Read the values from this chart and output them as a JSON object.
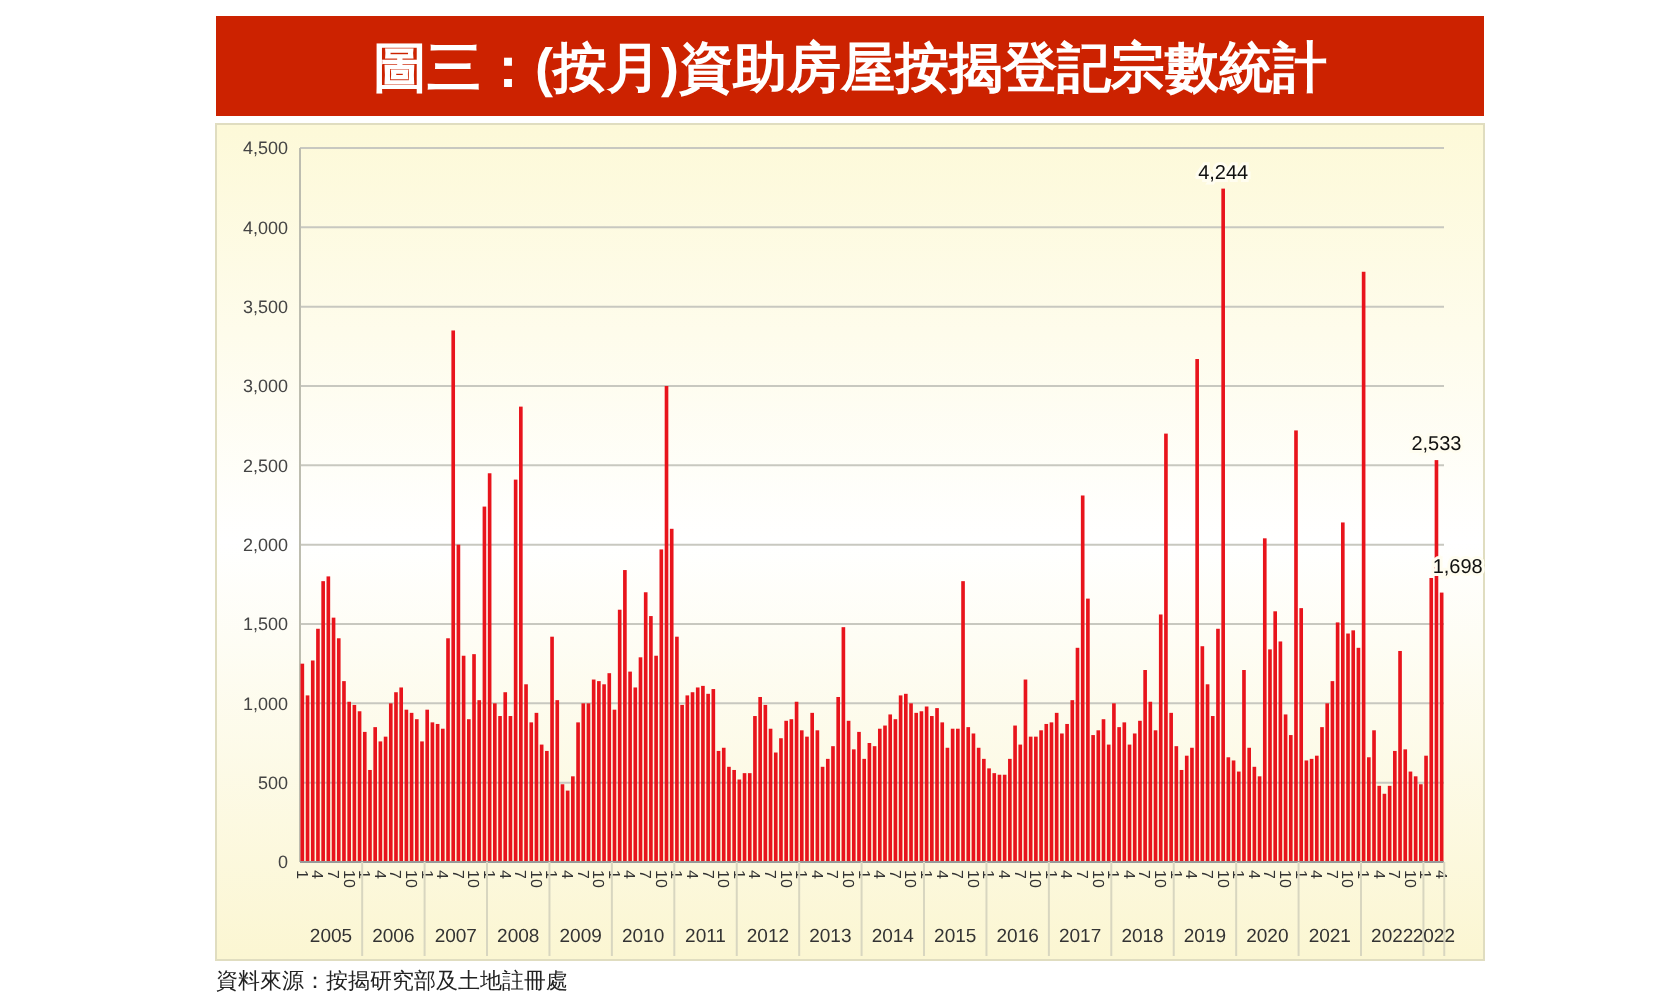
{
  "chart_data": {
    "type": "bar",
    "title": "圖三：(按月)資助房屋按揭登記宗數統計",
    "categories": [
      "1",
      null,
      null,
      "4",
      null,
      null,
      "7",
      null,
      null,
      "10",
      null,
      null,
      "1",
      null,
      null,
      "4",
      null,
      null,
      "7",
      null,
      null,
      "10",
      null,
      null,
      "1",
      null,
      null,
      "4",
      null,
      null,
      "7",
      null,
      null,
      "10",
      null,
      null,
      "1",
      null,
      null,
      "4",
      null,
      null,
      "7",
      null,
      null,
      "10",
      null,
      null,
      "1",
      null,
      null,
      "4",
      null,
      null,
      "7",
      null,
      null,
      "10",
      null,
      null,
      "1",
      null,
      null,
      "4",
      null,
      null,
      "7",
      null,
      null,
      "10",
      null,
      null,
      "1",
      null,
      null,
      "4",
      null,
      null,
      "7",
      null,
      null,
      "10",
      null,
      null,
      "1",
      null,
      null,
      "4",
      null,
      null,
      "7",
      null,
      null,
      "10",
      null,
      null,
      "1",
      null,
      null,
      "4",
      null,
      null,
      "7",
      null,
      null,
      "10",
      null,
      null,
      "1",
      null,
      null,
      "4",
      null,
      null,
      "7",
      null,
      null,
      "10",
      null,
      null,
      "1",
      null,
      null,
      "4",
      null,
      null,
      "7",
      null,
      null,
      "10",
      null,
      null,
      "1",
      null,
      null,
      "4",
      null,
      null,
      "7",
      null,
      null,
      "10",
      null,
      null,
      "1",
      null,
      null,
      "4",
      null,
      null,
      "7",
      null,
      null,
      "10",
      null,
      null,
      "1",
      null,
      null,
      "4",
      null,
      null,
      "7",
      null,
      null,
      "10",
      null,
      null,
      "1",
      null,
      null,
      "4",
      null,
      null,
      "7",
      null,
      null,
      "10",
      null,
      null,
      "1",
      null,
      null,
      "4",
      null,
      null,
      "7",
      null,
      null,
      "10",
      null,
      null,
      "1",
      null,
      null,
      "4",
      null,
      null,
      "7",
      null,
      null,
      "10",
      null,
      null,
      "1",
      null,
      null,
      "4",
      null,
      null,
      "7",
      null,
      null,
      "10",
      null,
      null,
      "1",
      null,
      null,
      "4"
    ],
    "values": [
      1250,
      1050,
      1270,
      1470,
      1770,
      1800,
      1540,
      1410,
      1140,
      1010,
      990,
      950,
      820,
      580,
      850,
      760,
      790,
      1000,
      1070,
      1100,
      960,
      940,
      900,
      760,
      960,
      880,
      870,
      840,
      1410,
      3350,
      2000,
      1300,
      900,
      1310,
      1020,
      2240,
      2450,
      1000,
      920,
      1070,
      920,
      2410,
      2870,
      1120,
      880,
      940,
      740,
      700,
      1420,
      1020,
      490,
      450,
      540,
      880,
      1000,
      1000,
      1150,
      1140,
      1120,
      1190,
      960,
      1590,
      1840,
      1200,
      1100,
      1290,
      1700,
      1550,
      1300,
      1970,
      3000,
      2100,
      1420,
      990,
      1050,
      1070,
      1100,
      1110,
      1060,
      1090,
      700,
      720,
      600,
      580,
      520,
      560,
      560,
      920,
      1040,
      990,
      840,
      690,
      780,
      890,
      900,
      1010,
      830,
      790,
      940,
      830,
      600,
      650,
      730,
      1040,
      1480,
      890,
      710,
      820,
      650,
      750,
      730,
      840,
      860,
      930,
      900,
      1050,
      1060,
      1000,
      940,
      950,
      980,
      920,
      970,
      880,
      720,
      840,
      840,
      1770,
      850,
      810,
      720,
      650,
      590,
      560,
      550,
      550,
      650,
      860,
      740,
      1150,
      790,
      790,
      830,
      870,
      880,
      940,
      810,
      870,
      1020,
      1350,
      2310,
      1660,
      800,
      830,
      900,
      740,
      1000,
      850,
      880,
      740,
      810,
      890,
      1210,
      1010,
      830,
      1560,
      2700,
      940,
      730,
      580,
      670,
      720,
      3170,
      1360,
      1120,
      920,
      1470,
      4244,
      660,
      640,
      570,
      1210,
      720,
      600,
      540,
      2040,
      1340,
      1580,
      1390,
      930,
      800,
      2720,
      1600,
      640,
      650,
      670,
      850,
      1000,
      1140,
      1510,
      2140,
      1440,
      1460,
      1350,
      3720,
      660,
      830,
      480,
      430,
      480,
      700,
      1330,
      710,
      570,
      540,
      490,
      670,
      1790,
      2533,
      1698
    ],
    "value_labels": [
      null,
      null,
      null,
      null,
      null,
      null,
      null,
      null,
      null,
      null,
      null,
      null,
      null,
      null,
      null,
      null,
      null,
      null,
      null,
      null,
      null,
      null,
      null,
      null,
      null,
      null,
      null,
      null,
      null,
      null,
      null,
      null,
      null,
      null,
      null,
      null,
      null,
      null,
      null,
      null,
      null,
      null,
      null,
      null,
      null,
      null,
      null,
      null,
      null,
      null,
      null,
      null,
      null,
      null,
      null,
      null,
      null,
      null,
      null,
      null,
      null,
      null,
      null,
      null,
      null,
      null,
      null,
      null,
      null,
      null,
      null,
      null,
      null,
      null,
      null,
      null,
      null,
      null,
      null,
      null,
      null,
      null,
      null,
      null,
      null,
      null,
      null,
      null,
      null,
      null,
      null,
      null,
      null,
      null,
      null,
      null,
      null,
      null,
      null,
      null,
      null,
      null,
      null,
      null,
      null,
      null,
      null,
      null,
      null,
      null,
      null,
      null,
      null,
      null,
      null,
      null,
      null,
      null,
      null,
      null,
      null,
      null,
      null,
      null,
      null,
      null,
      null,
      null,
      null,
      null,
      null,
      null,
      null,
      null,
      null,
      null,
      null,
      null,
      null,
      null,
      null,
      null,
      null,
      null,
      null,
      null,
      null,
      null,
      null,
      null,
      null,
      null,
      null,
      null,
      null,
      null,
      null,
      null,
      null,
      null,
      null,
      null,
      null,
      null,
      null,
      null,
      null,
      null,
      null,
      null,
      null,
      null,
      null,
      null,
      null,
      null,
      null,
      "4,244",
      null,
      null,
      null,
      null,
      null,
      null,
      null,
      null,
      null,
      null,
      null,
      null,
      null,
      null,
      null,
      null,
      null,
      null,
      null,
      null,
      null,
      null,
      null,
      null,
      null,
      null,
      null,
      null,
      null,
      null,
      null,
      null,
      null,
      null,
      null,
      null,
      null,
      null,
      null,
      null,
      "2,533",
      "1,698"
    ],
    "color": "#e8141c",
    "ylim": [
      0,
      4500
    ],
    "yticks": [
      {
        "value": 0,
        "label": "0"
      },
      {
        "value": 500,
        "label": "500"
      },
      {
        "value": 1000,
        "label": "1,000"
      },
      {
        "value": 1500,
        "label": "1,500"
      },
      {
        "value": 2000,
        "label": "2,000"
      },
      {
        "value": 2500,
        "label": "2,500"
      },
      {
        "value": 3000,
        "label": "3,000"
      },
      {
        "value": 3500,
        "label": "3,500"
      },
      {
        "value": 4000,
        "label": "4,000"
      },
      {
        "value": 4500,
        "label": "4,500"
      }
    ],
    "grid": "y",
    "annotations": [
      "2005",
      "2006",
      "2007",
      "2008",
      "2009",
      "2010",
      "2011",
      "2012",
      "2013",
      "2014",
      "2015",
      "2016",
      "2017",
      "2018",
      "2019",
      "2020",
      "2021",
      "2022",
      "2022",
      "資料來源：按揭研究部及土地註冊處"
    ]
  }
}
